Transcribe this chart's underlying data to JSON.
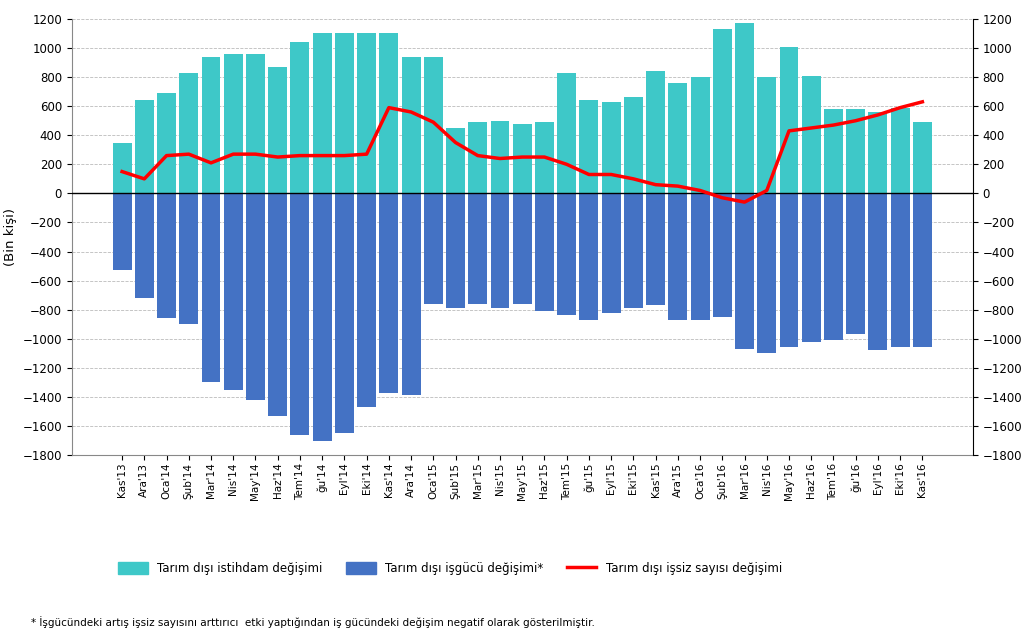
{
  "x_labels": [
    "Kas'13",
    "Ara'13",
    "Oca'14",
    "Şub'14",
    "Mar'14",
    "Nis'14",
    "May'14",
    "Haz'14",
    "Tem'14",
    "ğu'14",
    "Eyl'14",
    "Eki'14",
    "Kas'14",
    "Ara'14",
    "Oca'15",
    "Şub'15",
    "Mar'15",
    "Nis'15",
    "May'15",
    "Haz'15",
    "Tem'15",
    "ğu'15",
    "Eyl'15",
    "Eki'15",
    "Kas'15",
    "Ara'15",
    "Oca'16",
    "Şub'16",
    "Mar'16",
    "Nis'16",
    "May'16",
    "Haz'16",
    "Tem'16",
    "ğu'16",
    "Eyl'16",
    "Eki'16",
    "Kas'16"
  ],
  "istihdam": [
    350,
    640,
    690,
    830,
    940,
    960,
    960,
    870,
    1040,
    1100,
    1100,
    1100,
    1100,
    940,
    940,
    450,
    490,
    500,
    480,
    490,
    830,
    640,
    630,
    660,
    840,
    760,
    800,
    1130,
    1170,
    800,
    1010,
    810,
    580,
    580,
    560,
    590,
    490
  ],
  "isgücü": [
    -530,
    -720,
    -860,
    -900,
    -1300,
    -1350,
    -1420,
    -1530,
    -1660,
    -1700,
    -1650,
    -1470,
    -1370,
    -1390,
    -760,
    -790,
    -760,
    -790,
    -760,
    -810,
    -840,
    -870,
    -820,
    -790,
    -770,
    -870,
    -870,
    -850,
    -1070,
    -1100,
    -1060,
    -1020,
    -1010,
    -970,
    -1080,
    -1060,
    -1060
  ],
  "issiz": [
    150,
    100,
    260,
    270,
    210,
    270,
    270,
    250,
    260,
    260,
    260,
    270,
    590,
    560,
    490,
    350,
    260,
    240,
    250,
    250,
    200,
    130,
    130,
    100,
    60,
    50,
    20,
    -30,
    -60,
    20,
    430,
    450,
    470,
    500,
    540,
    590,
    630
  ],
  "istihdam_color": "#3EC8C8",
  "isgücü_color": "#4472C4",
  "issiz_color": "#FF0000",
  "background_color": "#FFFFFF",
  "ylim": [
    -1800,
    1200
  ],
  "ylabel": "(Bin kişi)",
  "legend1": "Tarım dışı istihdam değişimi",
  "legend2": "Tarım dışı işgücü değişimi*",
  "legend3": "Tarım dışı işsiz sayısı değişimi",
  "footnote": "* İşgücündeki artış işsiz sayısını arttırıcı  etki yaptığından iş gücündeki değişim negatif olarak gösterilmiştir."
}
